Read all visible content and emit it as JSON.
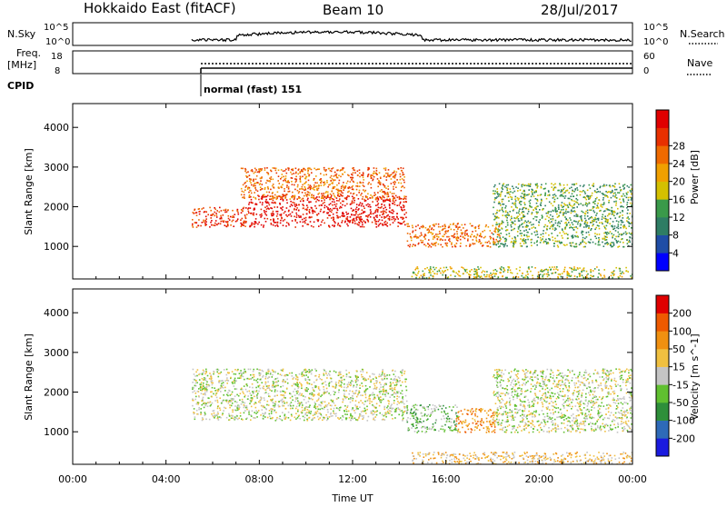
{
  "header": {
    "radar": "Hokkaido East (fitACF)",
    "beam": "Beam 10",
    "date": "28/Jul/2017"
  },
  "panels": {
    "nsky": {
      "left_label": "N.Sky",
      "right_label": "N.Search",
      "left_ticks": [
        "10^5",
        "10^0"
      ],
      "right_ticks": [
        "10^5",
        "10^0"
      ]
    },
    "freq": {
      "left_label_1": "Freq.",
      "left_label_2": "[MHz]",
      "right_label": "Nave",
      "left_ticks": [
        "18",
        "8"
      ],
      "right_ticks": [
        "60",
        "0"
      ]
    },
    "cpid": {
      "label": "CPID",
      "mode_text": "normal (fast) 151"
    }
  },
  "colors": {
    "power": [
      "#0000ff",
      "#1f4da6",
      "#2e7d64",
      "#3a9a4a",
      "#d4c000",
      "#f0a000",
      "#ef6a00",
      "#e83000",
      "#e00000"
    ],
    "velocity": [
      "#1a1adf",
      "#2e6ab8",
      "#2e8f3a",
      "#60c030",
      "#c4c4c4",
      "#f0c040",
      "#f09010",
      "#ee5a00",
      "#e00000"
    ]
  },
  "chart_data": [
    {
      "type": "heatmap",
      "name": "power",
      "xlabel": "",
      "ylabel": "Slant Range [km]",
      "x_ticks": [
        "",
        "",
        "",
        "",
        "",
        "",
        ""
      ],
      "xlim_hours": [
        0,
        24
      ],
      "y_ticks": [
        1000,
        2000,
        3000,
        4000
      ],
      "ylim_km": [
        180,
        4600
      ],
      "colorbar_label": "Power [dB]",
      "colorbar_ticks": [
        4,
        8,
        12,
        16,
        20,
        24,
        28
      ],
      "data_start_hour": 5.1,
      "echo_regions": [
        {
          "t0": 5.1,
          "t1": 7.5,
          "r0": 1500,
          "r1": 2000,
          "level": 7
        },
        {
          "t0": 7.5,
          "t1": 14.3,
          "r0": 1500,
          "r1": 2300,
          "level": 8
        },
        {
          "t0": 7.2,
          "t1": 14.2,
          "r0": 2200,
          "r1": 3000,
          "level": 6
        },
        {
          "t0": 14.3,
          "t1": 18.3,
          "r0": 1000,
          "r1": 1600,
          "level": 6
        },
        {
          "t0": 14.5,
          "t1": 24,
          "r0": 180,
          "r1": 500,
          "level": 4
        },
        {
          "t0": 18.0,
          "t1": 24,
          "r0": 1000,
          "r1": 2600,
          "level": 3
        }
      ]
    },
    {
      "type": "heatmap",
      "name": "velocity",
      "xlabel": "Time UT",
      "ylabel": "Slant Range [km]",
      "x_ticks": [
        "00:00",
        "04:00",
        "08:00",
        "12:00",
        "16:00",
        "20:00",
        "00:00"
      ],
      "xlim_hours": [
        0,
        24
      ],
      "y_ticks": [
        1000,
        2000,
        3000,
        4000
      ],
      "ylim_km": [
        180,
        4600
      ],
      "colorbar_label": "Velocity [m s^-1]",
      "colorbar_ticks": [
        200,
        100,
        50,
        15,
        -15,
        -50,
        -100,
        -200
      ],
      "data_start_hour": 5.1,
      "echo_regions": [
        {
          "t0": 5.1,
          "t1": 14.3,
          "r0": 1300,
          "r1": 2600,
          "level": 4
        },
        {
          "t0": 14.3,
          "t1": 16.5,
          "r0": 1000,
          "r1": 1700,
          "level": 3
        },
        {
          "t0": 16.4,
          "t1": 18.1,
          "r0": 1000,
          "r1": 1600,
          "level": 6
        },
        {
          "t0": 14.5,
          "t1": 24,
          "r0": 180,
          "r1": 500,
          "level": 5
        },
        {
          "t0": 18.0,
          "t1": 24,
          "r0": 1000,
          "r1": 2600,
          "level": 4
        }
      ]
    }
  ]
}
